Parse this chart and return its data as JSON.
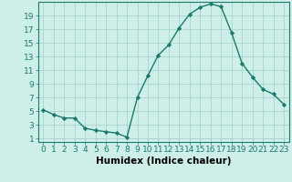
{
  "x": [
    0,
    1,
    2,
    3,
    4,
    5,
    6,
    7,
    8,
    9,
    10,
    11,
    12,
    13,
    14,
    15,
    16,
    17,
    18,
    19,
    20,
    21,
    22,
    23
  ],
  "y": [
    5.2,
    4.5,
    4.0,
    4.0,
    2.5,
    2.2,
    2.0,
    1.8,
    1.2,
    7.0,
    10.2,
    13.2,
    14.7,
    17.2,
    19.2,
    20.2,
    20.7,
    20.3,
    16.5,
    12.0,
    10.0,
    8.2,
    7.5,
    6.0
  ],
  "xlabel": "Humidex (Indice chaleur)",
  "yticks": [
    1,
    3,
    5,
    7,
    9,
    11,
    13,
    15,
    17,
    19
  ],
  "xticks": [
    0,
    1,
    2,
    3,
    4,
    5,
    6,
    7,
    8,
    9,
    10,
    11,
    12,
    13,
    14,
    15,
    16,
    17,
    18,
    19,
    20,
    21,
    22,
    23
  ],
  "ylim": [
    0.5,
    21.0
  ],
  "xlim": [
    -0.5,
    23.5
  ],
  "line_color": "#1a7a6e",
  "marker": "D",
  "marker_size": 2.2,
  "bg_color": "#ceeee8",
  "grid_color": "#a8d4cc",
  "xlabel_fontsize": 7.5,
  "tick_fontsize": 6.5,
  "linewidth": 1.0
}
